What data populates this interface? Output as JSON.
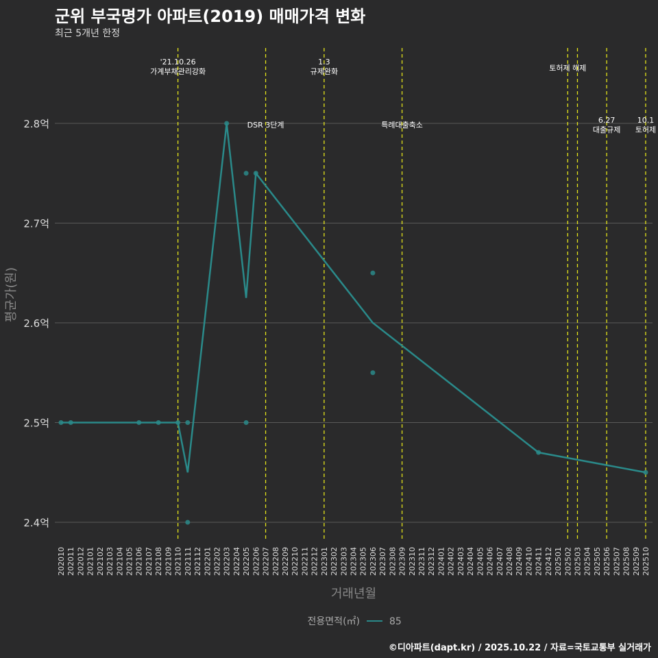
{
  "chart_data": {
    "type": "line",
    "title": "군위 부국명가 아파트(2019) 매매가격 변화",
    "subtitle": "최근 5개년 한정",
    "xlabel": "거래년월",
    "ylabel": "평균가(원)",
    "caption": "©디아파트(dapt.kr) / 2025.10.22 / 자료=국토교통부 실거래가",
    "ylim": [
      2.38,
      2.87
    ],
    "yticks": [
      {
        "v": 2.4,
        "label": "2.4억"
      },
      {
        "v": 2.5,
        "label": "2.5억"
      },
      {
        "v": 2.6,
        "label": "2.6억"
      },
      {
        "v": 2.7,
        "label": "2.7억"
      },
      {
        "v": 2.8,
        "label": "2.8억"
      }
    ],
    "x_start": "202010",
    "x_end": "202510",
    "legend": {
      "title": "전용면적(㎡)",
      "entries": [
        "85"
      ],
      "position": "bottom"
    },
    "series": [
      {
        "name": "85",
        "color": "#2a8a8a",
        "line": [
          [
            "202010",
            2.5
          ],
          [
            "202011",
            2.5
          ],
          [
            "202106",
            2.5
          ],
          [
            "202108",
            2.5
          ],
          [
            "202110",
            2.5
          ],
          [
            "202111",
            2.45
          ],
          [
            "202203",
            2.8
          ],
          [
            "202205",
            2.625
          ],
          [
            "202206",
            2.75
          ],
          [
            "202306",
            2.6
          ],
          [
            "202411",
            2.47
          ],
          [
            "202510",
            2.45
          ]
        ],
        "points": [
          [
            "202010",
            2.5
          ],
          [
            "202011",
            2.5
          ],
          [
            "202106",
            2.5
          ],
          [
            "202108",
            2.5
          ],
          [
            "202110",
            2.5
          ],
          [
            "202111",
            2.5
          ],
          [
            "202111",
            2.4
          ],
          [
            "202203",
            2.8
          ],
          [
            "202205",
            2.75
          ],
          [
            "202205",
            2.5
          ],
          [
            "202206",
            2.75
          ],
          [
            "202306",
            2.65
          ],
          [
            "202306",
            2.55
          ],
          [
            "202411",
            2.47
          ],
          [
            "202510",
            2.45
          ]
        ]
      }
    ],
    "events": [
      {
        "month": "202110",
        "lines": [
          "'21.10.26",
          "가계부채관리강화"
        ],
        "row": "top"
      },
      {
        "month": "202207",
        "lines": [
          "DSR 3단계"
        ],
        "row": "mid"
      },
      {
        "month": "202301",
        "lines": [
          "1.3",
          "규제완화"
        ],
        "row": "top"
      },
      {
        "month": "202309",
        "lines": [
          "특례대출축소"
        ],
        "row": "mid"
      },
      {
        "month": "202502",
        "lines": [
          "토허제 해제"
        ],
        "row": "top2"
      },
      {
        "month": "202503",
        "lines": [],
        "row": "none"
      },
      {
        "month": "202506",
        "lines": [
          "6.27",
          "대출규제"
        ],
        "row": "low"
      },
      {
        "month": "202510",
        "lines": [
          "10.1",
          "토허제"
        ],
        "row": "low"
      }
    ],
    "event_line_color": "#e6e619"
  }
}
